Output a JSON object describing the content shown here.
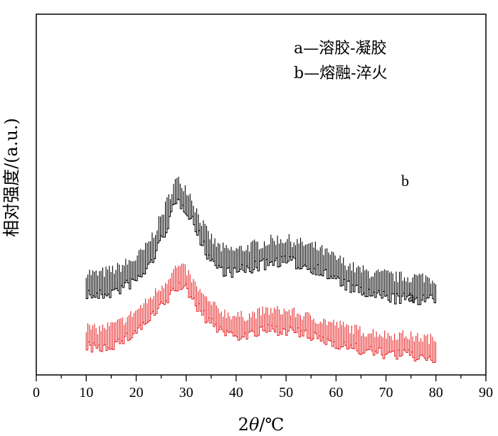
{
  "chart_data": {
    "type": "line",
    "title": "",
    "xlabel": "2θ/℃",
    "xlabel_prefix": "2",
    "xlabel_var": "θ",
    "xlabel_unit": "/℃",
    "ylabel": "相对强度/(a.u.)",
    "xlim": [
      0,
      90
    ],
    "x_ticks": [
      0,
      10,
      20,
      30,
      40,
      50,
      60,
      70,
      80,
      90
    ],
    "x_tick_labels": [
      "0",
      "10",
      "20",
      "30",
      "40",
      "50",
      "60",
      "70",
      "80",
      "90"
    ],
    "y_ticks_shown": false,
    "legend": {
      "position": "top-right",
      "entries": [
        "a—溶胶-凝胶",
        "b—熔融-淬火"
      ]
    },
    "series": [
      {
        "label": "b",
        "color": "#000000",
        "x": [
          10,
          12,
          14,
          16,
          18,
          20,
          22,
          24,
          26,
          27,
          28,
          29,
          30,
          31,
          32,
          34,
          36,
          38,
          40,
          42,
          44,
          46,
          48,
          50,
          52,
          54,
          56,
          58,
          60,
          62,
          64,
          66,
          68,
          70,
          72,
          74,
          76,
          78,
          80
        ],
        "y": [
          0.15,
          0.14,
          0.15,
          0.16,
          0.18,
          0.2,
          0.24,
          0.31,
          0.4,
          0.45,
          0.49,
          0.48,
          0.46,
          0.43,
          0.38,
          0.3,
          0.25,
          0.23,
          0.23,
          0.24,
          0.25,
          0.26,
          0.27,
          0.27,
          0.26,
          0.25,
          0.24,
          0.22,
          0.2,
          0.18,
          0.16,
          0.15,
          0.14,
          0.14,
          0.13,
          0.13,
          0.13,
          0.13,
          0.12
        ]
      },
      {
        "label": "a",
        "color": "#e8282a",
        "x": [
          10,
          12,
          14,
          16,
          18,
          20,
          22,
          24,
          26,
          27,
          28,
          29,
          30,
          31,
          32,
          34,
          36,
          38,
          40,
          42,
          44,
          46,
          48,
          50,
          52,
          54,
          56,
          58,
          60,
          62,
          64,
          66,
          68,
          70,
          72,
          74,
          76,
          78,
          80
        ],
        "y": [
          -0.05,
          -0.06,
          -0.05,
          -0.04,
          -0.02,
          0.01,
          0.04,
          0.08,
          0.12,
          0.15,
          0.17,
          0.17,
          0.16,
          0.13,
          0.1,
          0.05,
          0.02,
          0.0,
          -0.01,
          -0.01,
          0.0,
          0.01,
          0.01,
          0.01,
          0.0,
          -0.01,
          -0.02,
          -0.03,
          -0.04,
          -0.05,
          -0.06,
          -0.07,
          -0.07,
          -0.08,
          -0.08,
          -0.08,
          -0.09,
          -0.09,
          -0.1
        ]
      }
    ],
    "curve_label_positions": [
      {
        "label": "b",
        "x": 74,
        "y": 0.22
      },
      {
        "label": "a",
        "x": 75,
        "y": 0.03
      }
    ]
  }
}
